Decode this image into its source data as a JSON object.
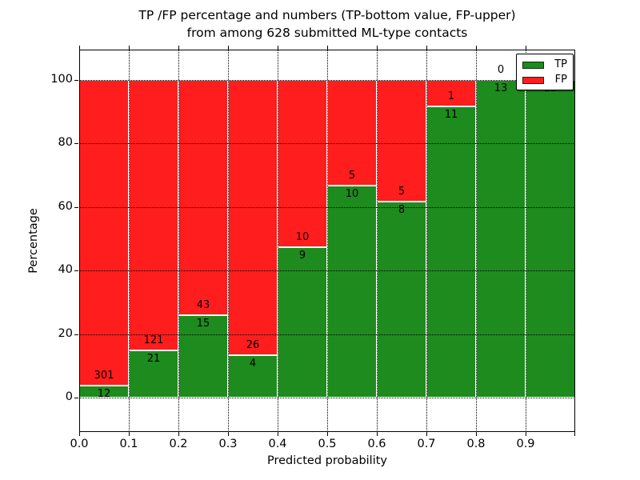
{
  "title": {
    "line1": "TP /FP percentage and numbers (TP-bottom value, FP-upper)",
    "line2": "from among 628 submitted ML-type contacts"
  },
  "y_axis": {
    "label": "Percentage",
    "tick_values": [
      0,
      20,
      40,
      60,
      80,
      100
    ]
  },
  "x_axis": {
    "label": "Predicted probability",
    "tick_labels": [
      "0.0",
      "0.1",
      "0.2",
      "0.3",
      "0.4",
      "0.5",
      "0.6",
      "0.7",
      "0.8",
      "0.9"
    ],
    "tick_values": [
      0.0,
      0.1,
      0.2,
      0.3,
      0.4,
      0.5,
      0.6,
      0.7,
      0.8,
      0.9
    ]
  },
  "legend": {
    "position": "upper right",
    "items": [
      {
        "label": "TP",
        "color": "#1e8b1e"
      },
      {
        "label": "FP",
        "color": "#ff1d1d"
      }
    ]
  },
  "colors": {
    "tp": "#1e8b1e",
    "fp": "#ff1d1d",
    "text": "#000000",
    "background": "#ffffff"
  },
  "chart_data": {
    "type": "bar",
    "stacked": true,
    "normalized_to_100_percent": true,
    "title": "TP /FP percentage and numbers (TP-bottom value, FP-upper) from among 628 submitted ML-type contacts",
    "xlabel": "Predicted probability",
    "ylabel": "Percentage",
    "total_contacts": 628,
    "bins": [
      "0.0-0.1",
      "0.1-0.2",
      "0.2-0.3",
      "0.3-0.4",
      "0.4-0.5",
      "0.5-0.6",
      "0.6-0.7",
      "0.7-0.8",
      "0.8-0.9",
      "0.9-1.0"
    ],
    "series": [
      {
        "name": "TP",
        "color": "#1e8b1e",
        "counts": [
          12,
          21,
          15,
          4,
          9,
          10,
          8,
          11,
          13,
          13
        ]
      },
      {
        "name": "FP",
        "color": "#ff1d1d",
        "counts": [
          301,
          121,
          43,
          26,
          10,
          5,
          5,
          1,
          0,
          0
        ]
      }
    ],
    "tp_percent_of_bin": [
      3.8,
      14.8,
      25.9,
      13.3,
      47.4,
      66.7,
      61.5,
      91.7,
      100.0,
      100.0
    ],
    "xlim": [
      0.0,
      1.0
    ],
    "ylim": [
      -11,
      109
    ],
    "grid": "dotted",
    "legend_position": "upper right"
  }
}
